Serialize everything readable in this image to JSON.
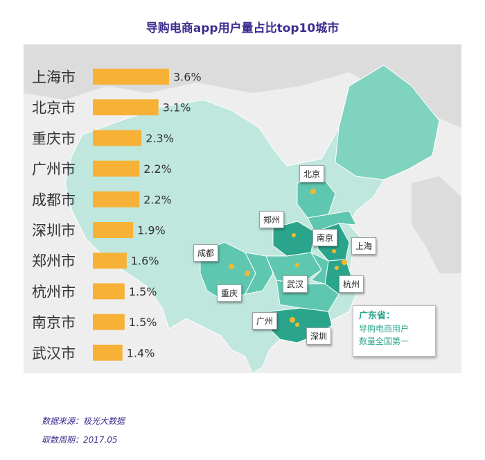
{
  "title": "导购电商app用户量占比top10城市",
  "chart_data": {
    "type": "bar",
    "orientation": "horizontal",
    "categories": [
      "上海市",
      "北京市",
      "重庆市",
      "广州市",
      "成都市",
      "深圳市",
      "郑州市",
      "杭州市",
      "南京市",
      "武汉市"
    ],
    "values": [
      3.6,
      3.1,
      2.3,
      2.2,
      2.2,
      1.9,
      1.6,
      1.5,
      1.5,
      1.4
    ],
    "value_labels": [
      "3.6%",
      "3.1%",
      "2.3%",
      "2.2%",
      "2.2%",
      "1.9%",
      "1.6%",
      "1.5%",
      "1.5%",
      "1.4%"
    ],
    "unit": "%",
    "bar_color": "#f7b137",
    "xlim": [
      0,
      3.6
    ],
    "legend": "none",
    "grid": false
  },
  "map": {
    "city_labels": [
      "北京",
      "郑州",
      "南京",
      "上海",
      "成都",
      "武汉",
      "杭州",
      "重庆",
      "广州",
      "深圳"
    ],
    "highlight_color": "#5fc7b0",
    "dark_color": "#2aa58c",
    "light_color": "#bfe7dd",
    "dot_color": "#f5b731"
  },
  "callout": {
    "province": "广东省：",
    "line1": "导购电商用户",
    "line2": "数量全国第一"
  },
  "footer": {
    "source": "数据来源：极光大数据",
    "period": "取数周期：2017.05"
  }
}
